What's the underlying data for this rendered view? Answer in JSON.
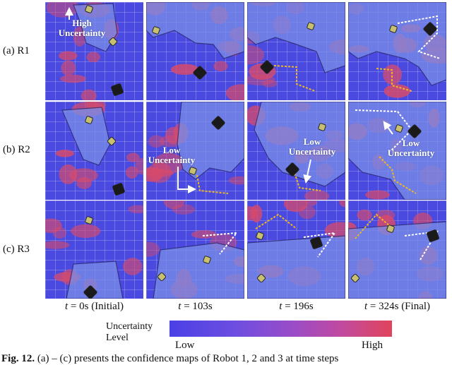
{
  "rows": [
    {
      "label": "(a) R1"
    },
    {
      "label": "(b) R2"
    },
    {
      "label": "(c) R3"
    }
  ],
  "time_labels": [
    {
      "var": "t",
      "rest": " = 0s (Initial)"
    },
    {
      "var": "t",
      "rest": " = 103s"
    },
    {
      "var": "t",
      "rest": " = 196s"
    },
    {
      "var": "t",
      "rest": " = 324s (Final)"
    }
  ],
  "annotations": {
    "high_uncertainty": "High\nUncertainty",
    "low_uncertainty_1": "Low\nUncertainty",
    "low_uncertainty_2": "Low\nUncertainty",
    "low_uncertainty_3": "Low\nUncertainty"
  },
  "colorbar": {
    "title": "Uncertainty\nLevel",
    "low": "Low",
    "high": "High",
    "color_low": "#4a40e6",
    "color_high": "#e0445a"
  },
  "caption": {
    "prefix": "Fig. 12.",
    "text": " (a) – (c) presents the confidence maps of Robot 1, 2 and 3 at time steps"
  },
  "colors": {
    "map_blue": "#4a4ae0",
    "explored_blue": "#7a8ee8",
    "hotspot_red": "#d84a6a",
    "trajectory_yellow": "#f0b820",
    "trajectory_white": "#ffffff"
  }
}
